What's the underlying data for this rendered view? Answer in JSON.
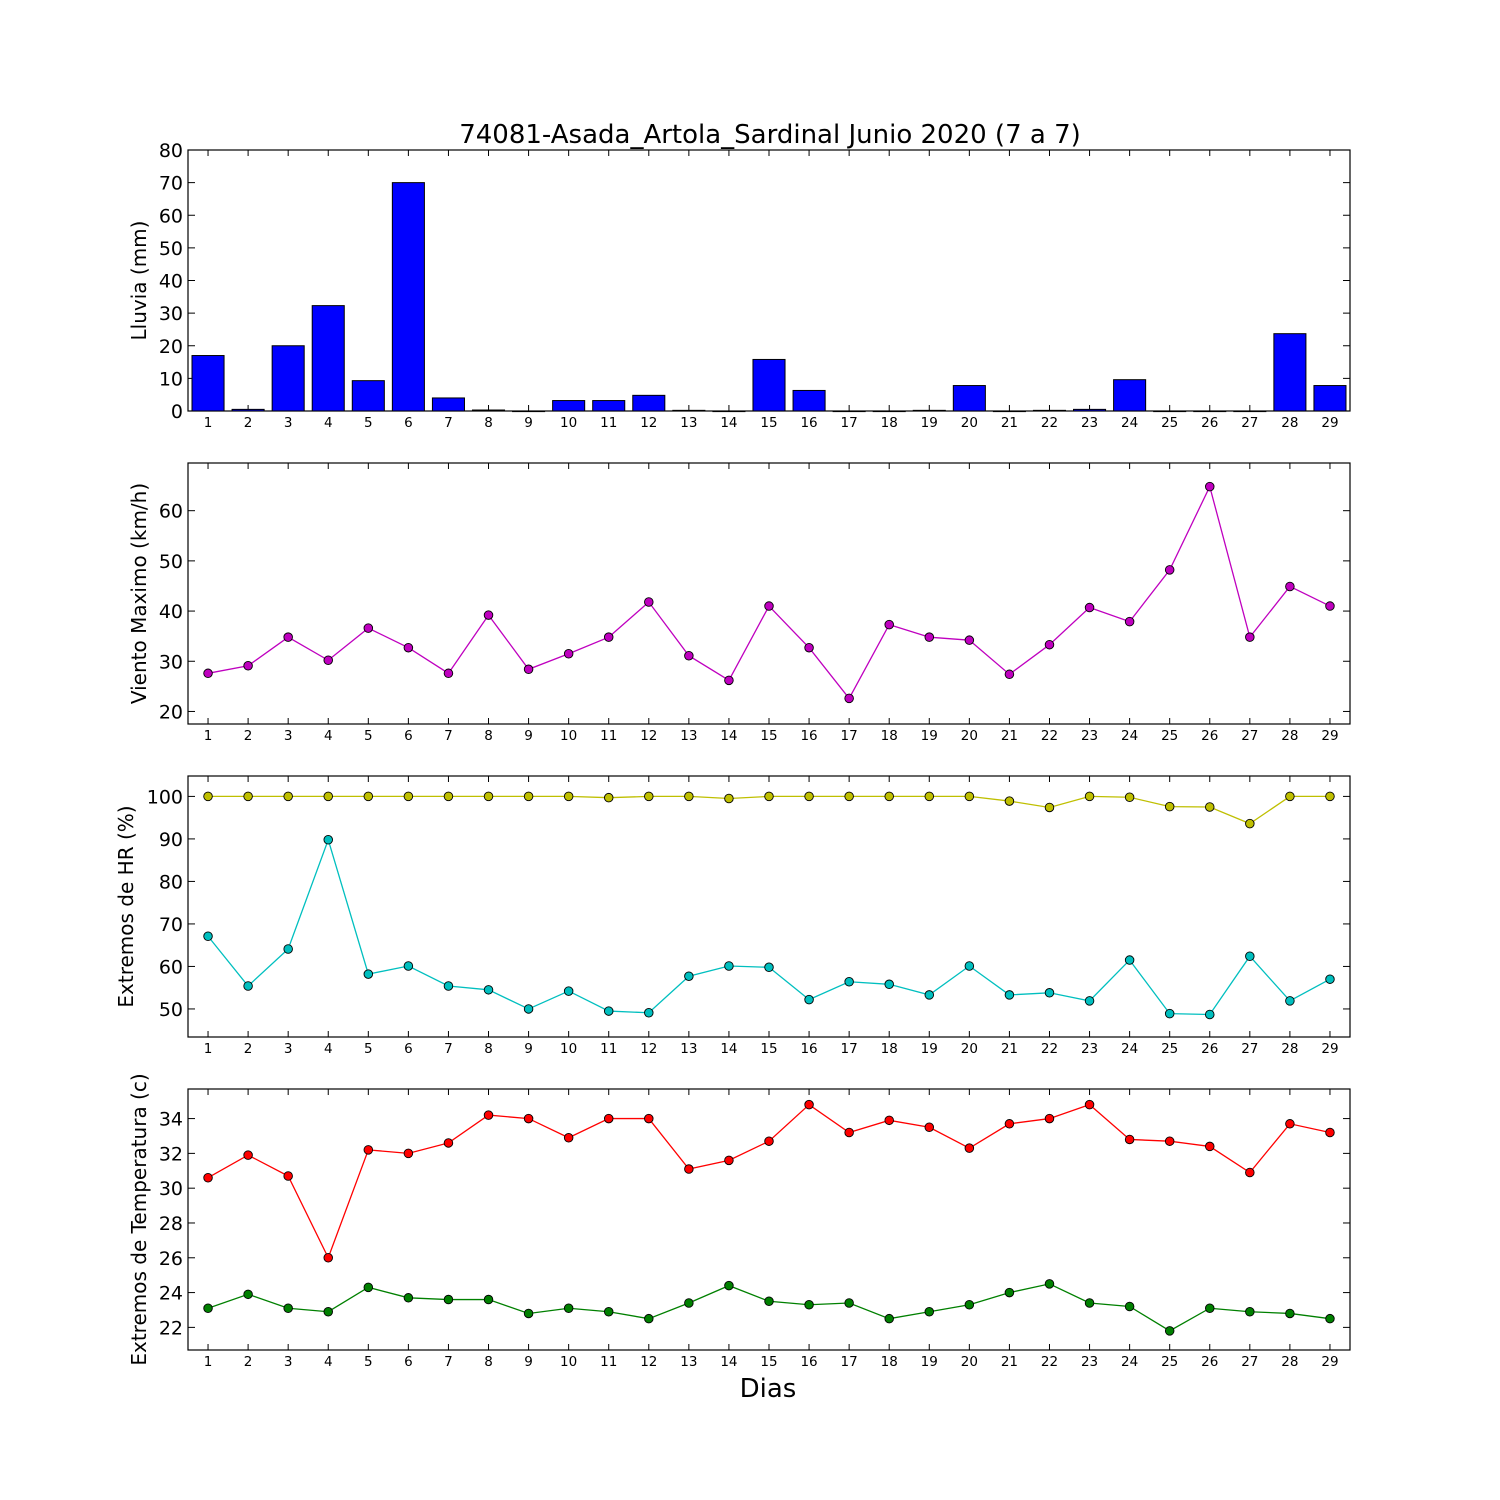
{
  "title": "74081-Asada_Artola_Sardinal Junio 2020  (7 a 7)",
  "xlabel": "Dias",
  "colors": {
    "rain": "#0000ff",
    "wind": "#bf00bf",
    "hr_max": "#bfbf00",
    "hr_min": "#00bfbf",
    "temp_max": "#ff0000",
    "temp_min": "#008000"
  },
  "chart_data": [
    {
      "type": "bar",
      "ylabel": "Lluvia (mm)",
      "ylim": [
        0,
        80
      ],
      "yticks": [
        0,
        10,
        20,
        30,
        40,
        50,
        60,
        70,
        80
      ],
      "categories": [
        "1",
        "2",
        "3",
        "4",
        "5",
        "6",
        "7",
        "8",
        "9",
        "10",
        "11",
        "12",
        "13",
        "14",
        "15",
        "16",
        "17",
        "18",
        "19",
        "20",
        "21",
        "22",
        "23",
        "24",
        "25",
        "26",
        "27",
        "28",
        "29"
      ],
      "values": [
        17,
        0.5,
        20,
        32.3,
        9.3,
        70,
        4,
        0.3,
        0,
        3.2,
        3.2,
        4.8,
        0.2,
        0,
        15.8,
        6.3,
        0,
        0,
        0.2,
        7.8,
        0,
        0.2,
        0.5,
        9.6,
        0,
        0,
        0,
        23.7,
        7.8
      ],
      "series": [
        {
          "name": "",
          "color": "#0000ff"
        }
      ]
    },
    {
      "type": "line",
      "ylabel": "Viento Maximo (km/h)",
      "ylim": [
        17.5,
        69.5
      ],
      "yticks": [
        20,
        30,
        40,
        50,
        60
      ],
      "categories": [
        "1",
        "2",
        "3",
        "4",
        "5",
        "6",
        "7",
        "8",
        "9",
        "10",
        "11",
        "12",
        "13",
        "14",
        "15",
        "16",
        "17",
        "18",
        "19",
        "20",
        "21",
        "22",
        "23",
        "24",
        "25",
        "26",
        "27",
        "28",
        "29"
      ],
      "series": [
        {
          "name": "",
          "color": "#bf00bf",
          "values": [
            27.6,
            29.1,
            34.8,
            30.2,
            36.6,
            32.7,
            27.6,
            39.2,
            28.4,
            31.5,
            34.8,
            41.8,
            31.1,
            26.2,
            41,
            32.7,
            22.6,
            37.3,
            34.8,
            34.2,
            27.4,
            33.3,
            40.7,
            37.9,
            48.2,
            64.8,
            34.8,
            44.9,
            41
          ]
        }
      ]
    },
    {
      "type": "line",
      "ylabel": "Extremos de HR (%)",
      "ylim": [
        43.4,
        104.8
      ],
      "yticks": [
        50,
        60,
        70,
        80,
        90,
        100
      ],
      "categories": [
        "1",
        "2",
        "3",
        "4",
        "5",
        "6",
        "7",
        "8",
        "9",
        "10",
        "11",
        "12",
        "13",
        "14",
        "15",
        "16",
        "17",
        "18",
        "19",
        "20",
        "21",
        "22",
        "23",
        "24",
        "25",
        "26",
        "27",
        "28",
        "29"
      ],
      "series": [
        {
          "name": "",
          "color": "#bfbf00",
          "values": [
            100,
            100,
            100,
            100,
            100,
            100,
            100,
            100,
            100,
            100,
            99.7,
            100,
            100,
            99.5,
            100,
            100,
            100,
            100,
            100,
            100,
            98.9,
            97.4,
            100,
            99.8,
            97.6,
            97.5,
            93.6,
            100,
            100
          ]
        },
        {
          "name": "",
          "color": "#00bfbf",
          "values": [
            67.1,
            55.4,
            64.1,
            89.8,
            58.2,
            60.1,
            55.4,
            54.5,
            50,
            54.2,
            49.5,
            49.1,
            57.7,
            60.1,
            59.8,
            52.2,
            56.4,
            55.8,
            53.3,
            60.1,
            53.3,
            53.8,
            51.9,
            61.5,
            48.9,
            48.7,
            62.4,
            51.9,
            57
          ]
        }
      ]
    },
    {
      "type": "line",
      "ylabel": "Extremos de Temperatura (c)",
      "ylim": [
        20.7,
        35.7
      ],
      "yticks": [
        22,
        24,
        26,
        28,
        30,
        32,
        34
      ],
      "categories": [
        "1",
        "2",
        "3",
        "4",
        "5",
        "6",
        "7",
        "8",
        "9",
        "10",
        "11",
        "12",
        "13",
        "14",
        "15",
        "16",
        "17",
        "18",
        "19",
        "20",
        "21",
        "22",
        "23",
        "24",
        "25",
        "26",
        "27",
        "28",
        "29"
      ],
      "series": [
        {
          "name": "",
          "color": "#ff0000",
          "values": [
            30.6,
            31.9,
            30.7,
            26,
            32.2,
            32,
            32.6,
            34.2,
            34,
            32.9,
            34,
            34,
            31.1,
            31.6,
            32.7,
            34.8,
            33.2,
            33.9,
            33.5,
            32.3,
            33.7,
            34,
            34.8,
            32.8,
            32.7,
            32.4,
            30.9,
            33.7,
            33.2
          ]
        },
        {
          "name": "",
          "color": "#008000",
          "values": [
            23.1,
            23.9,
            23.1,
            22.9,
            24.3,
            23.7,
            23.6,
            23.6,
            22.8,
            23.1,
            22.9,
            22.5,
            23.4,
            24.4,
            23.5,
            23.3,
            23.4,
            22.5,
            22.9,
            23.3,
            24,
            24.5,
            23.4,
            23.2,
            21.8,
            23.1,
            22.9,
            22.8,
            22.5
          ]
        }
      ]
    }
  ]
}
